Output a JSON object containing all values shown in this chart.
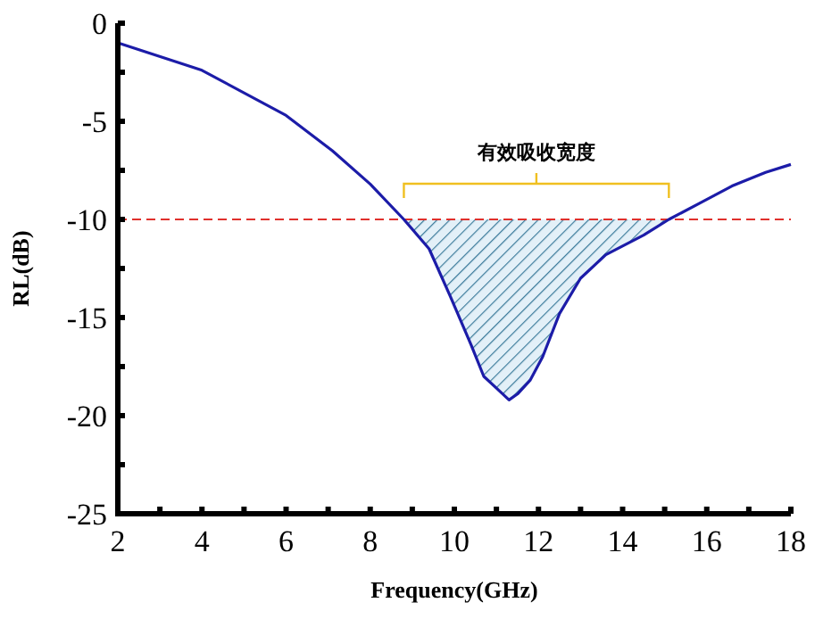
{
  "chart_data": {
    "type": "line",
    "xlabel": "Frequency(GHz)",
    "ylabel": "RL(dB)",
    "xlim": [
      2,
      18
    ],
    "ylim": [
      -25,
      0
    ],
    "xticks": [
      2,
      {
        "value": 3,
        "label": null
      },
      4,
      {
        "value": 5,
        "label": null
      },
      6,
      {
        "value": 7,
        "label": null
      },
      8,
      {
        "value": 9,
        "label": null
      },
      10,
      {
        "value": 11,
        "label": null
      },
      12,
      {
        "value": 13,
        "label": null
      },
      14,
      {
        "value": 15,
        "label": null
      },
      16,
      {
        "value": 17,
        "label": null
      },
      18
    ],
    "yticks": [
      -25,
      {
        "value": -22.5,
        "label": null
      },
      -20,
      {
        "value": -17.5,
        "label": null
      },
      -15,
      {
        "value": -12.5,
        "label": null
      },
      -10,
      {
        "value": -7.5,
        "label": null
      },
      -5,
      {
        "value": -2.5,
        "label": null
      },
      0
    ],
    "grid": false,
    "marker": "none",
    "line_style": "solid",
    "series": [
      {
        "color": "#1c1ca8",
        "x": [
          2,
          4,
          6,
          7.1,
          8,
          8.8,
          9.4,
          9.9,
          10.4,
          10.7,
          11,
          11.3,
          11.5,
          11.8,
          12.1,
          12.5,
          13,
          13.6,
          14.5,
          15.1,
          15.9,
          16.6,
          17.4,
          18
        ],
        "values": [
          -1,
          -2.4,
          -4.7,
          -6.5,
          -8.2,
          -10,
          -11.5,
          -13.9,
          -16.4,
          -18,
          -18.6,
          -19.2,
          -18.9,
          -18.2,
          -17,
          -14.8,
          -13,
          -11.8,
          -10.8,
          -10,
          -9.1,
          -8.3,
          -7.6,
          -7.2
        ],
        "lower": [
          null,
          null,
          null,
          null,
          null,
          -10,
          -11.5,
          -13.9,
          -16.4,
          -18,
          -18.6,
          -19.2,
          -18.9,
          -18.2,
          -17,
          -14.8,
          -13,
          -11.8,
          -10.8,
          -10,
          null,
          null,
          null,
          null
        ],
        "upper": [
          null,
          null,
          null,
          null,
          null,
          -10,
          -10,
          -10,
          -10,
          -10,
          -10,
          -10,
          -10,
          -10,
          -10,
          -10,
          -10,
          -10,
          -10,
          -10,
          null,
          null,
          null,
          null
        ]
      }
    ],
    "ref_lines": [
      {
        "axis": "y",
        "value": -10,
        "label": null,
        "color": "#e0302c",
        "line_style": "dashed"
      }
    ],
    "annotations": [
      "有效吸收宽度"
    ]
  }
}
